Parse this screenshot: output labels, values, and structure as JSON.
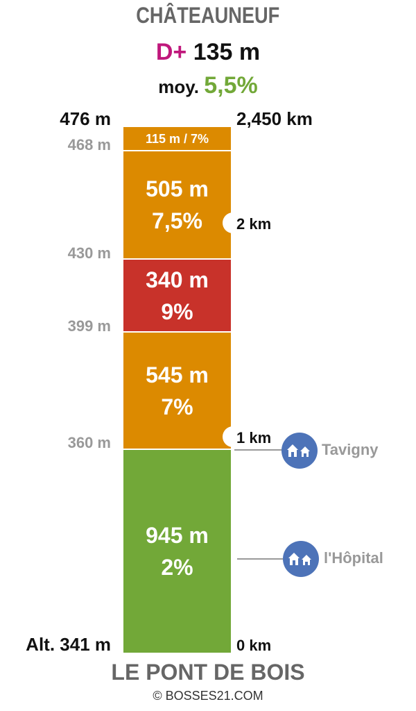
{
  "header": {
    "summit": "CHÂTEAUNEUF",
    "dplus_label": "D+",
    "dplus_value": "135 m",
    "avg_label": "moy.",
    "avg_value": "5,5%"
  },
  "top": {
    "altitude": "476 m",
    "distance": "2,450 km"
  },
  "segments": [
    {
      "length": "115 m",
      "grade": "7%",
      "combined": "115 m / 7%",
      "color": "#dc8a00"
    },
    {
      "length": "505 m",
      "grade": "7,5%",
      "color": "#dc8a00"
    },
    {
      "length": "340 m",
      "grade": "9%",
      "color": "#c8322a"
    },
    {
      "length": "545 m",
      "grade": "7%",
      "color": "#dc8a00"
    },
    {
      "length": "945 m",
      "grade": "2%",
      "color": "#72a838"
    }
  ],
  "altitudes": [
    "468 m",
    "430 m",
    "399 m",
    "360 m"
  ],
  "km_marks": [
    "2 km",
    "1 km"
  ],
  "villages": [
    {
      "name": "Tavigny",
      "icon": "houses-icon"
    },
    {
      "name": "l'Hôpital",
      "icon": "houses-icon"
    }
  ],
  "bottom": {
    "altitude": "Alt. 341 m",
    "distance": "0 km",
    "start": "LE PONT DE BOIS"
  },
  "credit": "© BOSSES21.COM",
  "colors": {
    "title_gray": "#666666",
    "label_gray": "#999999",
    "dplus_magenta": "#c0187c",
    "avg_green": "#72a838",
    "moderate_orange": "#dc8a00",
    "steep_red": "#c8322a",
    "easy_green": "#72a838",
    "village_blue": "#4d73b8"
  }
}
